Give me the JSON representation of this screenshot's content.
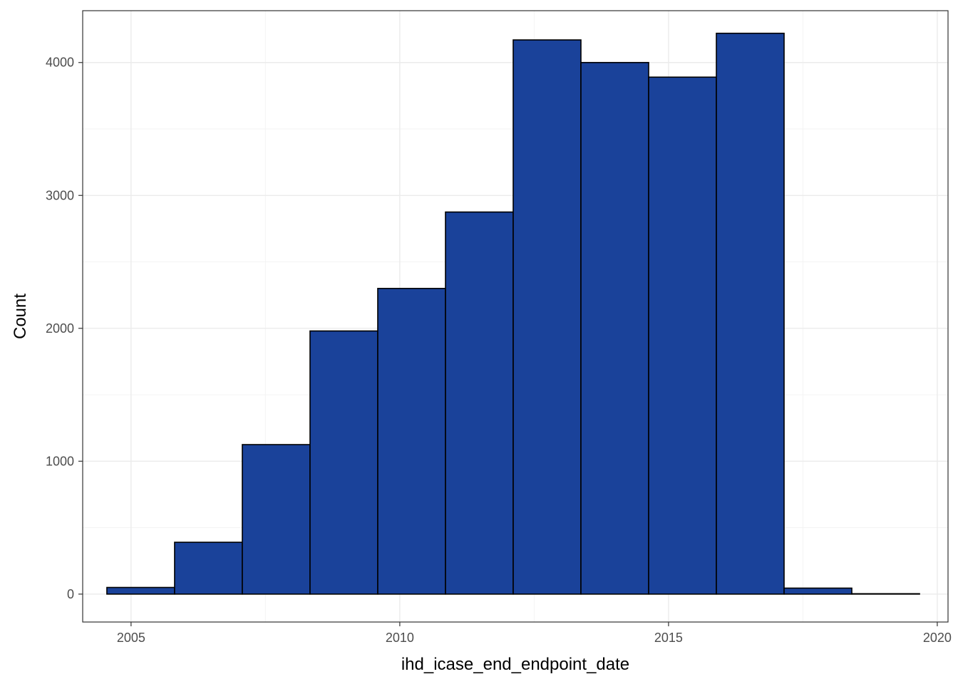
{
  "chart_data": {
    "type": "bar",
    "subtype": "histogram",
    "title": "",
    "xlabel": "ihd_icase_end_endpoint_date",
    "ylabel": "Count",
    "xlim": [
      2004.1,
      2020.2
    ],
    "ylim": [
      -210,
      4390
    ],
    "x_ticks": [
      2005,
      2010,
      2015,
      2020
    ],
    "y_ticks": [
      0,
      1000,
      2000,
      3000,
      4000
    ],
    "grid": true,
    "legend": "none",
    "bar_fill": "#1a429a",
    "bar_outline": "#000000",
    "bins": [
      {
        "start": 2004.55,
        "end": 2005.81,
        "count": 50
      },
      {
        "start": 2005.81,
        "end": 2007.07,
        "count": 390
      },
      {
        "start": 2007.07,
        "end": 2008.33,
        "count": 1125
      },
      {
        "start": 2008.33,
        "end": 2009.59,
        "count": 1980
      },
      {
        "start": 2009.59,
        "end": 2010.85,
        "count": 2300
      },
      {
        "start": 2010.85,
        "end": 2012.11,
        "count": 2875
      },
      {
        "start": 2012.11,
        "end": 2013.37,
        "count": 4170
      },
      {
        "start": 2013.37,
        "end": 2014.63,
        "count": 4000
      },
      {
        "start": 2014.63,
        "end": 2015.89,
        "count": 3890
      },
      {
        "start": 2015.89,
        "end": 2017.15,
        "count": 4220
      },
      {
        "start": 2017.15,
        "end": 2018.41,
        "count": 45
      },
      {
        "start": 2018.41,
        "end": 2019.67,
        "count": 3
      }
    ]
  }
}
